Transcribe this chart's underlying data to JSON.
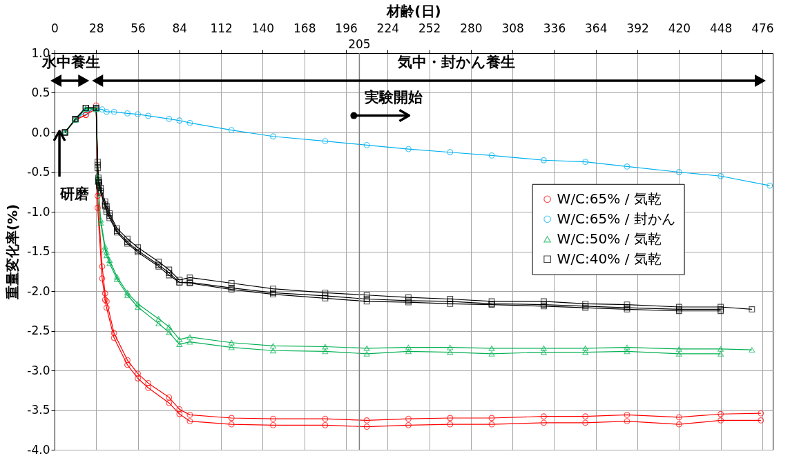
{
  "chart_data": {
    "type": "line",
    "xlabel": "材齢(日)",
    "ylabel": "重量変化率(%)",
    "xlim": [
      0,
      483
    ],
    "xticks": [
      0,
      28,
      56,
      84,
      112,
      140,
      168,
      196,
      224,
      252,
      280,
      308,
      336,
      364,
      392,
      420,
      448,
      476
    ],
    "ylim": [
      -4,
      1
    ],
    "yticks": [
      {
        "value": -4,
        "label": "-4.0"
      },
      {
        "value": -3.5,
        "label": "-3.5"
      },
      {
        "value": -3,
        "label": "-3.0"
      },
      {
        "value": -2.5,
        "label": "-2.5"
      },
      {
        "value": -2,
        "label": "-2.0"
      },
      {
        "value": -1.5,
        "label": "-1.5"
      },
      {
        "value": -1,
        "label": "-1.0"
      },
      {
        "value": -0.5,
        "label": "-0.5"
      },
      {
        "value": 0,
        "label": "0.0"
      },
      {
        "value": 0.5,
        "label": "0.5"
      },
      {
        "value": 1,
        "label": "1.0"
      }
    ],
    "grid": true,
    "legend": "right",
    "ref_lines": [
      {
        "axis": "x",
        "value": 205,
        "label": "205",
        "color": "#808080"
      }
    ],
    "annotations": [
      "水中養生",
      "気中・封かん養生",
      {
        "text": "実験開始",
        "x": 205,
        "y": 0.16
      },
      {
        "text": "研磨",
        "x": 7,
        "y": 0
      }
    ],
    "series": [
      {
        "name": "W/C:65% / 気乾",
        "color": "#ff0000",
        "marker": "circle",
        "x": [
          7,
          14,
          21,
          28,
          29,
          32,
          34,
          35,
          40,
          49,
          56,
          63,
          77,
          84,
          91,
          119,
          147,
          182,
          210,
          238,
          266,
          294,
          329,
          357,
          385,
          420,
          448,
          475
        ],
        "values": [
          0,
          0.16,
          0.22,
          0.34,
          -0.8,
          -1.69,
          -2.03,
          -2.13,
          -2.53,
          -2.87,
          -3.04,
          -3.16,
          -3.34,
          -3.49,
          -3.56,
          -3.6,
          -3.61,
          -3.61,
          -3.63,
          -3.61,
          -3.6,
          -3.6,
          -3.58,
          -3.58,
          -3.56,
          -3.59,
          -3.55,
          -3.54
        ]
      },
      {
        "color": "#ff0000",
        "marker": "circle",
        "x": [
          7,
          14,
          21,
          28,
          29,
          32,
          34,
          35,
          40,
          49,
          56,
          63,
          77,
          84,
          91,
          119,
          147,
          182,
          210,
          238,
          266,
          294,
          329,
          357,
          385,
          420,
          448,
          475
        ],
        "values": [
          0,
          0.16,
          0.22,
          0.3,
          -0.95,
          -1.84,
          -2.11,
          -2.21,
          -2.59,
          -2.93,
          -3.1,
          -3.22,
          -3.41,
          -3.55,
          -3.64,
          -3.68,
          -3.69,
          -3.69,
          -3.71,
          -3.69,
          -3.68,
          -3.68,
          -3.66,
          -3.66,
          -3.64,
          -3.68,
          -3.63,
          -3.63
        ]
      },
      {
        "name": "W/C:65% / 封かん",
        "color": "#00b0f0",
        "marker": "circle",
        "x": [
          7,
          14,
          21,
          28,
          32,
          35,
          40,
          49,
          56,
          63,
          77,
          84,
          91,
          119,
          147,
          182,
          210,
          238,
          266,
          294,
          329,
          357,
          385,
          420,
          448,
          481
        ],
        "values": [
          0,
          0.16,
          0.26,
          0.3,
          0.29,
          0.26,
          0.26,
          0.24,
          0.23,
          0.21,
          0.17,
          0.15,
          0.12,
          0.03,
          -0.05,
          -0.11,
          -0.16,
          -0.21,
          -0.25,
          -0.29,
          -0.35,
          -0.37,
          -0.43,
          -0.5,
          -0.55,
          -0.67
        ]
      },
      {
        "name": "W/C:50% / 気乾",
        "color": "#00b050",
        "marker": "triangle",
        "x": [
          7,
          14,
          21,
          28,
          29,
          31,
          34,
          35,
          37,
          42,
          49,
          56,
          70,
          77,
          84,
          91,
          119,
          147,
          182,
          210,
          238,
          266,
          294,
          329,
          357,
          385,
          420,
          448,
          469
        ],
        "values": [
          0,
          0.16,
          0.3,
          0.3,
          -0.56,
          -1.1,
          -1.44,
          -1.51,
          -1.61,
          -1.82,
          -2.02,
          -2.16,
          -2.35,
          -2.45,
          -2.61,
          -2.58,
          -2.65,
          -2.69,
          -2.7,
          -2.72,
          -2.71,
          -2.71,
          -2.72,
          -2.72,
          -2.72,
          -2.71,
          -2.73,
          -2.73,
          -2.74
        ]
      },
      {
        "color": "#00b050",
        "marker": "triangle",
        "x": [
          7,
          14,
          21,
          28,
          29,
          31,
          34,
          35,
          37,
          42,
          49,
          56,
          70,
          77,
          84,
          91,
          119,
          147,
          182,
          210,
          238,
          266,
          294,
          329,
          357,
          385,
          420,
          448
        ],
        "values": [
          0,
          0.16,
          0.3,
          0.29,
          -0.62,
          -1.14,
          -1.48,
          -1.55,
          -1.65,
          -1.85,
          -2.05,
          -2.2,
          -2.41,
          -2.52,
          -2.67,
          -2.64,
          -2.71,
          -2.75,
          -2.76,
          -2.79,
          -2.76,
          -2.77,
          -2.79,
          -2.77,
          -2.77,
          -2.76,
          -2.79,
          -2.79
        ]
      },
      {
        "name": "W/C:40% / 気乾",
        "color": "#000000",
        "marker": "square",
        "x": [
          7,
          14,
          21,
          28,
          29,
          29.5,
          30,
          31,
          34,
          35,
          37,
          42,
          49,
          56,
          70,
          77,
          84,
          91,
          119,
          147,
          182,
          210,
          238,
          266,
          294,
          329,
          357,
          385,
          420,
          448,
          469
        ],
        "values": [
          0,
          0.17,
          0.31,
          0.31,
          -0.37,
          -0.57,
          -0.63,
          -0.7,
          -0.87,
          -0.93,
          -1.02,
          -1.21,
          -1.34,
          -1.45,
          -1.63,
          -1.73,
          -1.86,
          -1.83,
          -1.9,
          -1.97,
          -2.02,
          -2.05,
          -2.08,
          -2.1,
          -2.13,
          -2.13,
          -2.16,
          -2.17,
          -2.2,
          -2.2,
          -2.23
        ]
      },
      {
        "color": "#000000",
        "marker": "square",
        "x": [
          7,
          14,
          21,
          28,
          29,
          29.5,
          30,
          31,
          34,
          35,
          37,
          42,
          49,
          56,
          70,
          77,
          84,
          91,
          119,
          147,
          182,
          210,
          238,
          266,
          294,
          329,
          357,
          385,
          420,
          448
        ],
        "values": [
          0,
          0.17,
          0.31,
          0.31,
          -0.41,
          -0.6,
          -0.66,
          -0.74,
          -0.91,
          -0.97,
          -1.05,
          -1.24,
          -1.38,
          -1.49,
          -1.67,
          -1.77,
          -1.89,
          -1.89,
          -1.96,
          -2.02,
          -2.06,
          -2.1,
          -2.12,
          -2.13,
          -2.16,
          -2.17,
          -2.19,
          -2.21,
          -2.23,
          -2.23
        ]
      },
      {
        "color": "#000000",
        "marker": "square",
        "x": [
          7,
          14,
          21,
          28,
          29,
          29.5,
          30,
          31,
          34,
          35,
          37,
          42,
          49,
          56,
          70,
          77,
          84,
          91,
          119,
          147,
          182,
          210,
          238,
          266,
          294,
          329,
          357,
          385,
          420,
          448
        ],
        "values": [
          0,
          0.17,
          0.31,
          0.31,
          -0.45,
          -0.62,
          -0.68,
          -0.76,
          -0.93,
          -1.0,
          -1.08,
          -1.26,
          -1.4,
          -1.51,
          -1.69,
          -1.8,
          -1.89,
          -1.9,
          -1.98,
          -2.04,
          -2.09,
          -2.13,
          -2.14,
          -2.16,
          -2.17,
          -2.19,
          -2.21,
          -2.23,
          -2.25,
          -2.25
        ]
      }
    ]
  }
}
